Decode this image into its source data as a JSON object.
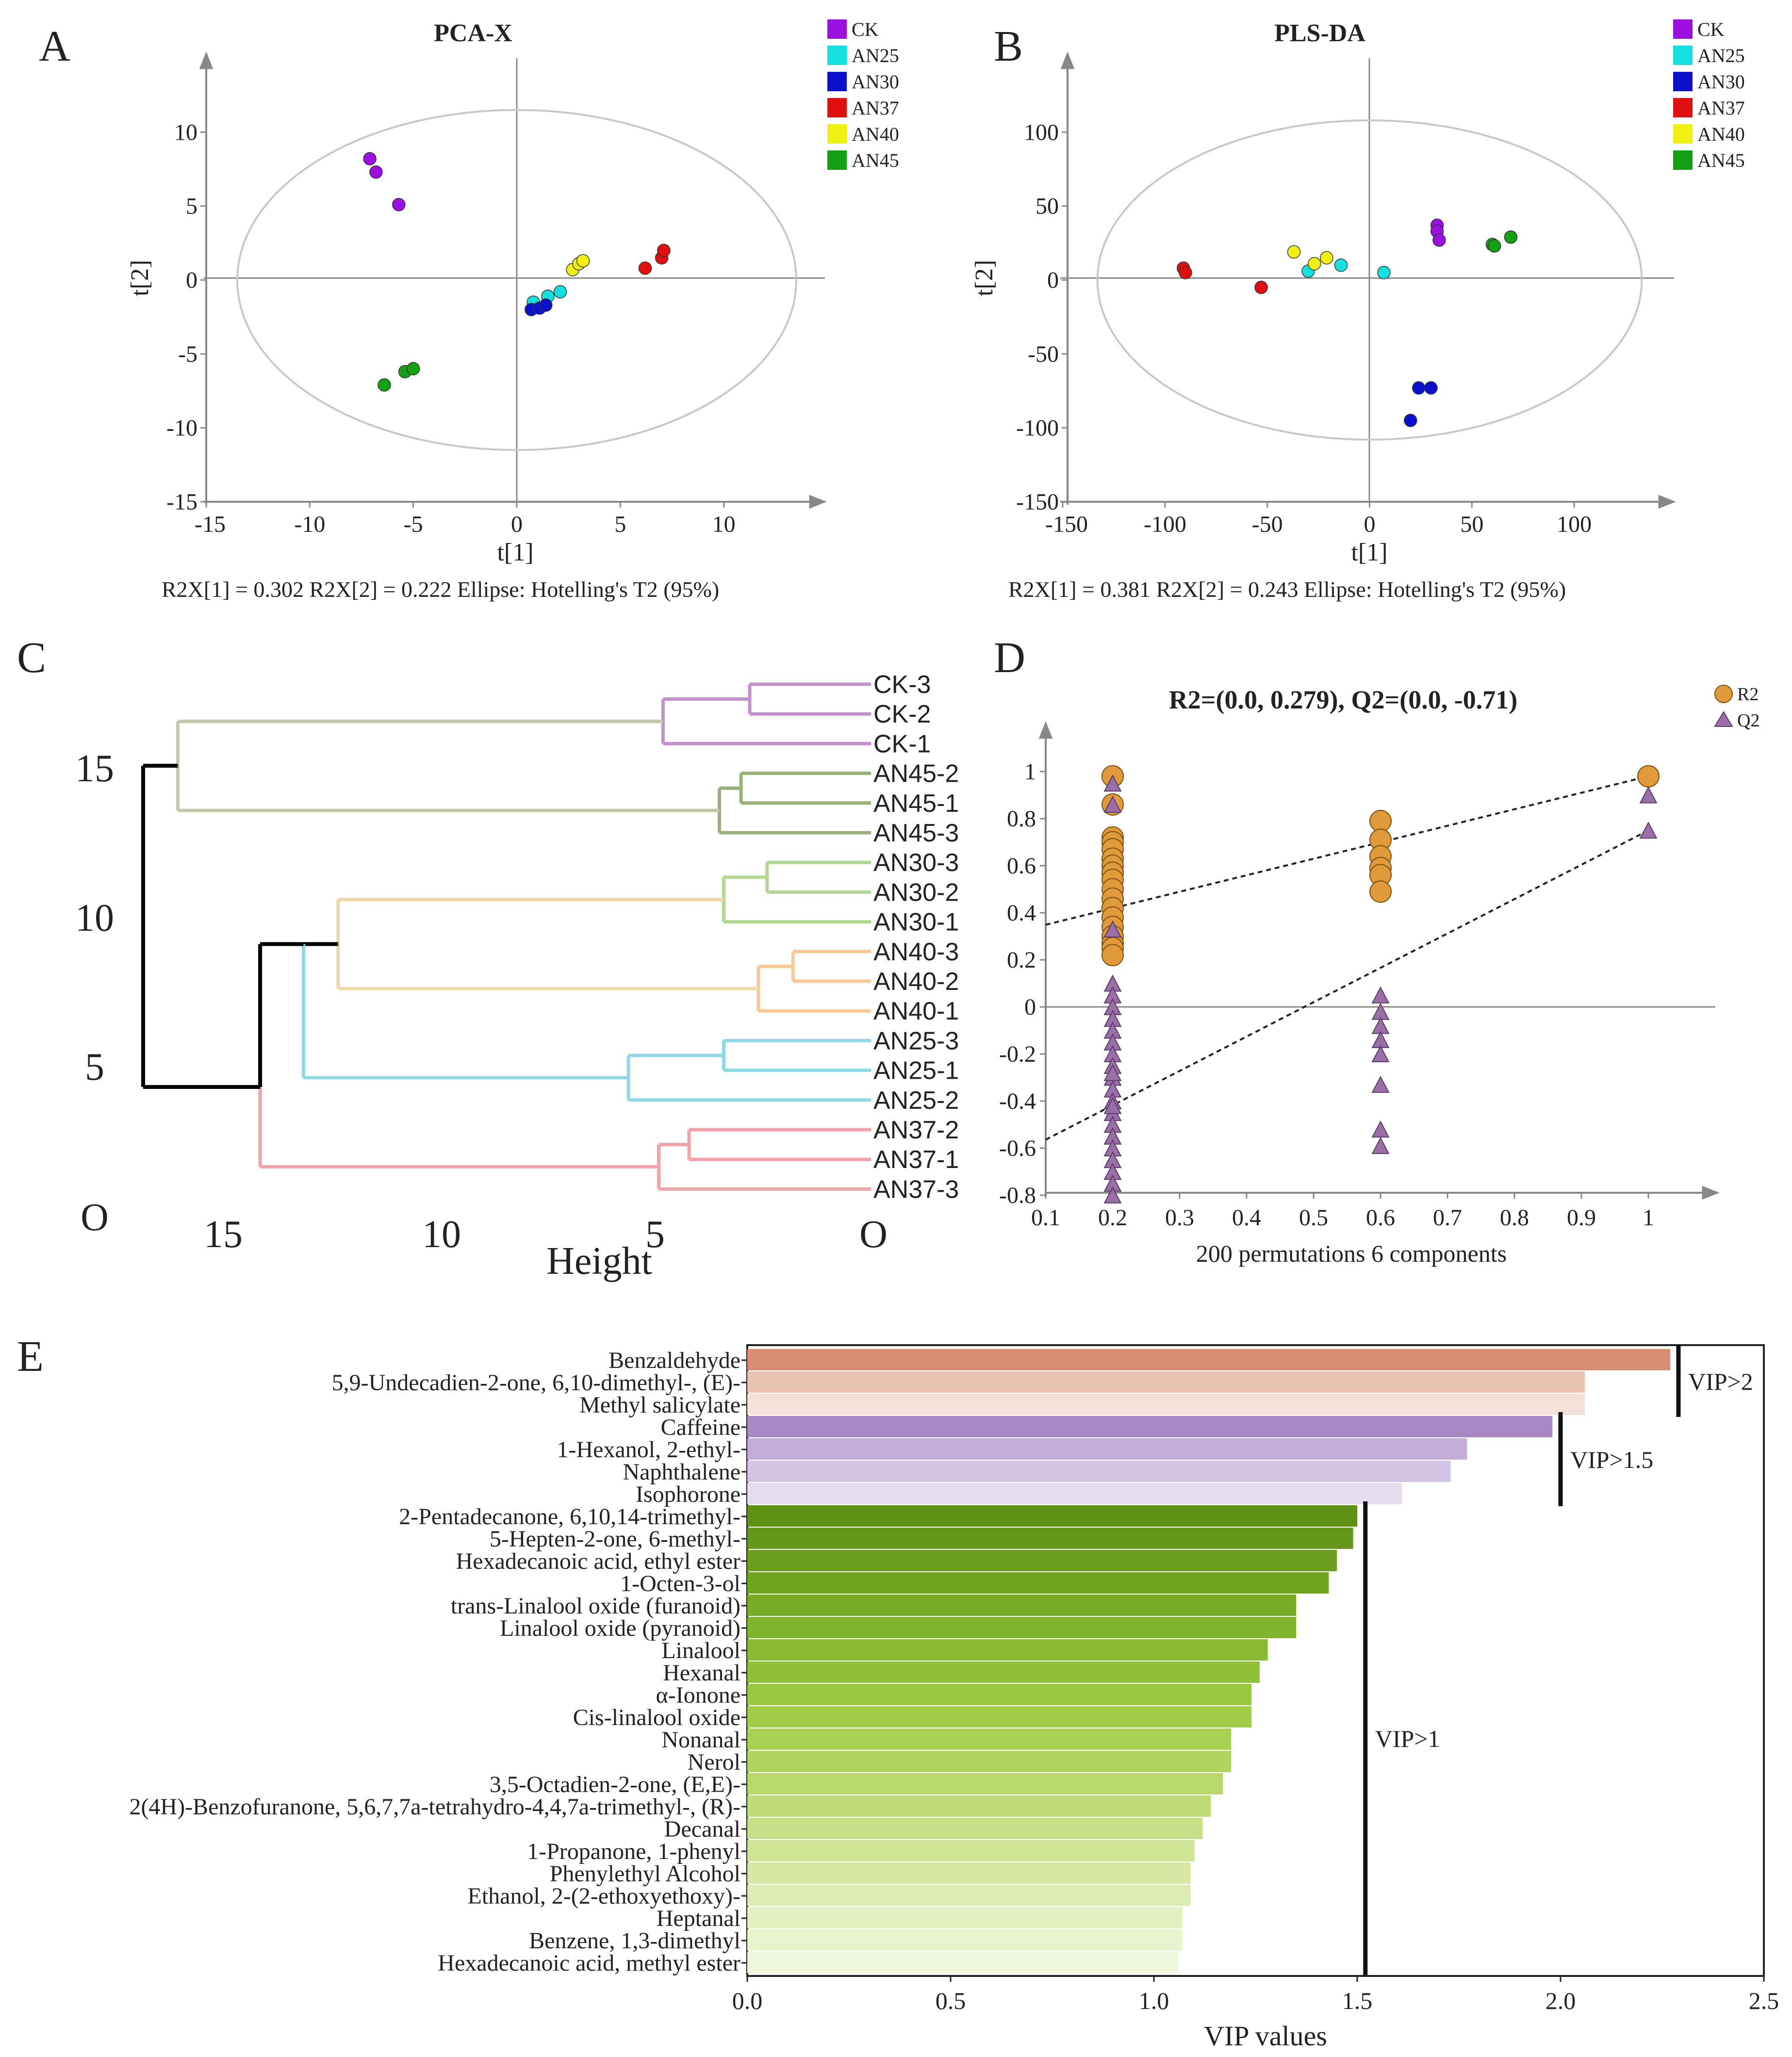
{
  "panels": {
    "A": {
      "letter": "A",
      "title": "PCA-X",
      "xlabel": "t[1]",
      "ylabel": "t[2]",
      "caption": "R2X[1] = 0.302  R2X[2] = 0.222  Ellipse: Hotelling's T2 (95%)",
      "x_ticks": [
        -15,
        -10,
        -5,
        0,
        5,
        10
      ],
      "y_ticks": [
        10,
        5,
        0,
        -5,
        -10,
        -15
      ],
      "xlim": [
        -15,
        15
      ],
      "ylim": [
        -15,
        15
      ],
      "ellipse": {
        "cx": 0,
        "cy": 0,
        "rx": 13.5,
        "ry": 11.5
      },
      "legend": [
        {
          "label": "CK",
          "color": "#9b10e0"
        },
        {
          "label": "AN25",
          "color": "#14e0e0"
        },
        {
          "label": "AN30",
          "color": "#0a10cc"
        },
        {
          "label": "AN37",
          "color": "#e01010"
        },
        {
          "label": "AN40",
          "color": "#f0f014"
        },
        {
          "label": "AN45",
          "color": "#14a014"
        }
      ]
    },
    "B": {
      "letter": "B",
      "title": "PLS-DA",
      "xlabel": "t[1]",
      "ylabel": "t[2]",
      "caption": "R2X[1] = 0.381  R2X[2] = 0.243  Ellipse: Hotelling's T2 (95%)",
      "x_ticks": [
        -150,
        -100,
        -50,
        0,
        50,
        100
      ],
      "y_ticks": [
        100,
        50,
        0,
        -50,
        -100,
        -150
      ],
      "xlim": [
        -150,
        150
      ],
      "ylim": [
        -150,
        150
      ],
      "ellipse": {
        "cx": 0,
        "cy": 0,
        "rx": 133,
        "ry": 108
      },
      "legend": [
        {
          "label": "CK",
          "color": "#9b10e0"
        },
        {
          "label": "AN25",
          "color": "#14e0e0"
        },
        {
          "label": "AN30",
          "color": "#0a10cc"
        },
        {
          "label": "AN37",
          "color": "#e01010"
        },
        {
          "label": "AN40",
          "color": "#f0f014"
        },
        {
          "label": "AN45",
          "color": "#14a014"
        }
      ]
    },
    "C": {
      "letter": "C",
      "xlabel": "Height",
      "x_ticks": [
        "15",
        "10",
        "5",
        "O"
      ],
      "y_ticks": [
        "15",
        "10",
        "5",
        "O"
      ]
    },
    "D": {
      "letter": "D",
      "title": "R2=(0.0, 0.279), Q2=(0.0, -0.71)",
      "xlabel": "200 permutations 6 components",
      "x_ticks": [
        "0.1",
        "0.2",
        "0.3",
        "0.4",
        "0.5",
        "0.6",
        "0.7",
        "0.8",
        "0.9",
        "1"
      ],
      "y_ticks": [
        "1",
        "0.8",
        "0.6",
        "0.4",
        "0.2",
        "0",
        "-0.2",
        "-0.4",
        "-0.6",
        "-0.8"
      ],
      "legend": [
        {
          "label": "R2",
          "color": "#e09a3a"
        },
        {
          "label": "Q2",
          "color": "#9a6fa8"
        }
      ]
    },
    "E": {
      "letter": "E",
      "xlabel": "VIP values",
      "x_ticks": [
        "0.0",
        "0.5",
        "1.0",
        "1.5",
        "2.0",
        "2.5"
      ],
      "thresholds": [
        "VIP>2",
        "VIP>1.5",
        "VIP>1"
      ]
    }
  },
  "chart_data": [
    {
      "type": "scatter",
      "panel": "A",
      "title": "PCA-X",
      "xlabel": "t[1]",
      "ylabel": "t[2]",
      "xlim": [
        -15,
        15
      ],
      "ylim": [
        -15,
        15
      ],
      "series": [
        {
          "name": "CK",
          "color": "#9b10e0",
          "points": [
            [
              -7.1,
              8.2
            ],
            [
              -6.8,
              7.3
            ],
            [
              -5.7,
              5.1
            ]
          ]
        },
        {
          "name": "AN25",
          "color": "#14e0e0",
          "points": [
            [
              0.8,
              -1.5
            ],
            [
              1.5,
              -1.1
            ],
            [
              2.1,
              -0.8
            ]
          ]
        },
        {
          "name": "AN30",
          "color": "#0a10cc",
          "points": [
            [
              0.7,
              -2.0
            ],
            [
              1.1,
              -1.9
            ],
            [
              1.4,
              -1.7
            ]
          ]
        },
        {
          "name": "AN37",
          "color": "#e01010",
          "points": [
            [
              6.2,
              0.8
            ],
            [
              7.0,
              1.5
            ],
            [
              7.1,
              2.0
            ]
          ]
        },
        {
          "name": "AN40",
          "color": "#f0f014",
          "points": [
            [
              2.7,
              0.7
            ],
            [
              3.0,
              1.1
            ],
            [
              3.2,
              1.3
            ]
          ]
        },
        {
          "name": "AN45",
          "color": "#14a014",
          "points": [
            [
              -6.4,
              -7.1
            ],
            [
              -5.4,
              -6.2
            ],
            [
              -5.0,
              -6.0
            ]
          ]
        }
      ]
    },
    {
      "type": "scatter",
      "panel": "B",
      "title": "PLS-DA",
      "xlabel": "t[1]",
      "ylabel": "t[2]",
      "xlim": [
        -150,
        150
      ],
      "ylim": [
        -150,
        150
      ],
      "series": [
        {
          "name": "CK",
          "color": "#9b10e0",
          "points": [
            [
              33,
              37
            ],
            [
              33,
              33
            ],
            [
              34,
              27
            ]
          ]
        },
        {
          "name": "AN25",
          "color": "#14e0e0",
          "points": [
            [
              -30,
              6
            ],
            [
              -14,
              10
            ],
            [
              7,
              5
            ]
          ]
        },
        {
          "name": "AN30",
          "color": "#0a10cc",
          "points": [
            [
              20,
              -95
            ],
            [
              24,
              -73
            ],
            [
              30,
              -73
            ]
          ]
        },
        {
          "name": "AN37",
          "color": "#e01010",
          "points": [
            [
              -91,
              8
            ],
            [
              -90,
              5
            ],
            [
              -53,
              -5
            ]
          ]
        },
        {
          "name": "AN40",
          "color": "#f0f014",
          "points": [
            [
              -37,
              19
            ],
            [
              -27,
              11
            ],
            [
              -21,
              15
            ]
          ]
        },
        {
          "name": "AN45",
          "color": "#14a014",
          "points": [
            [
              60,
              24
            ],
            [
              69,
              29
            ],
            [
              61,
              23
            ]
          ]
        }
      ]
    },
    {
      "type": "dendrogram",
      "panel": "C",
      "xlabel": "Height",
      "leaves": [
        "CK-3",
        "CK-2",
        "CK-1",
        "AN45-2",
        "AN45-1",
        "AN45-3",
        "AN30-3",
        "AN30-2",
        "AN30-1",
        "AN40-3",
        "AN40-2",
        "AN40-1",
        "AN25-3",
        "AN25-1",
        "AN25-2",
        "AN37-2",
        "AN37-1",
        "AN37-3"
      ],
      "merges": [
        {
          "a": "CK-3",
          "b": "CK-2",
          "height": 2.8,
          "color": "#c290cc"
        },
        {
          "a": "CK-3|CK-2",
          "b": "CK-1",
          "height": 4.8,
          "color": "#c290cc"
        },
        {
          "a": "AN45-2",
          "b": "AN45-1",
          "height": 3.0,
          "color": "#9ab07a"
        },
        {
          "a": "AN45-2|AN45-1",
          "b": "AN45-3",
          "height": 3.5,
          "color": "#9ab07a"
        },
        {
          "a": "AN30-3",
          "b": "AN30-2",
          "height": 2.4,
          "color": "#b2d890"
        },
        {
          "a": "AN30-3|AN30-2",
          "b": "AN30-1",
          "height": 3.4,
          "color": "#b2d890"
        },
        {
          "a": "AN40-3",
          "b": "AN40-2",
          "height": 1.8,
          "color": "#f8c898"
        },
        {
          "a": "AN40-3|AN40-2",
          "b": "AN40-1",
          "height": 2.6,
          "color": "#f8c898"
        },
        {
          "a": "AN25-3",
          "b": "AN25-1",
          "height": 3.4,
          "color": "#90d8e8"
        },
        {
          "a": "AN25-3|AN25-1",
          "b": "AN25-2",
          "height": 5.6,
          "color": "#90d8e8"
        },
        {
          "a": "AN37-2",
          "b": "AN37-1",
          "height": 4.2,
          "color": "#f2a2a8"
        },
        {
          "a": "AN37-2|AN37-1",
          "b": "AN37-3",
          "height": 4.9,
          "color": "#f2a2a8"
        },
        {
          "a": "CK",
          "b": "AN45",
          "height": 16.0,
          "color": "#c2c8a8"
        },
        {
          "a": "AN30",
          "b": "AN40",
          "height": 12.3,
          "color": "#f0d8a8"
        },
        {
          "a": "AN30+AN40",
          "b": "AN25",
          "height": 13.1,
          "color": "#90d8e8"
        },
        {
          "a": "AN30+AN40+AN25",
          "b": "AN37",
          "height": 14.1,
          "color": "#f2a2a8"
        },
        {
          "a": "CK+AN45",
          "b": "rest",
          "height": 16.8,
          "color": "#000000"
        }
      ]
    },
    {
      "type": "scatter",
      "panel": "D",
      "title": "R2=(0.0, 0.279), Q2=(0.0, -0.71)",
      "xlabel": "200 permutations 6 components",
      "xlim": [
        0.1,
        1.1
      ],
      "ylim": [
        -0.8,
        1.1
      ],
      "series": [
        {
          "name": "R2",
          "marker": "circle",
          "color": "#e09a3a",
          "x": [
            0.2,
            0.2,
            0.2,
            0.2,
            0.2,
            0.2,
            0.2,
            0.2,
            0.2,
            0.2,
            0.2,
            0.2,
            0.2,
            0.2,
            0.2,
            0.2,
            0.2,
            0.2,
            0.6,
            0.6,
            0.6,
            0.6,
            0.6,
            0.6,
            1.0
          ],
          "y": [
            0.98,
            0.86,
            0.72,
            0.7,
            0.67,
            0.63,
            0.6,
            0.57,
            0.54,
            0.5,
            0.46,
            0.42,
            0.38,
            0.34,
            0.3,
            0.27,
            0.25,
            0.22,
            0.79,
            0.71,
            0.64,
            0.59,
            0.56,
            0.49,
            0.98
          ]
        },
        {
          "name": "Q2",
          "marker": "triangle",
          "color": "#9a6fa8",
          "x": [
            0.2,
            0.2,
            0.2,
            0.2,
            0.2,
            0.2,
            0.2,
            0.2,
            0.2,
            0.2,
            0.2,
            0.2,
            0.2,
            0.2,
            0.2,
            0.2,
            0.2,
            0.2,
            0.2,
            0.2,
            0.2,
            0.2,
            0.2,
            0.2,
            0.6,
            0.6,
            0.6,
            0.6,
            0.6,
            0.6,
            0.6,
            0.6,
            1.0,
            1.0
          ],
          "y": [
            0.95,
            0.86,
            0.33,
            0.1,
            0.05,
            0.0,
            -0.05,
            -0.1,
            -0.15,
            -0.2,
            -0.25,
            -0.3,
            -0.35,
            -0.4,
            -0.45,
            -0.5,
            -0.55,
            -0.6,
            -0.65,
            -0.7,
            -0.75,
            -0.8,
            -0.42,
            -0.28,
            0.05,
            -0.02,
            -0.08,
            -0.14,
            -0.2,
            -0.33,
            -0.52,
            -0.59,
            0.9,
            0.75
          ]
        }
      ],
      "regression": [
        {
          "name": "R2",
          "x": [
            0.0,
            1.0
          ],
          "y": [
            0.279,
            0.98
          ]
        },
        {
          "name": "Q2",
          "x": [
            0.0,
            1.0
          ],
          "y": [
            -0.71,
            0.75
          ]
        }
      ]
    },
    {
      "type": "bar",
      "panel": "E",
      "orientation": "horizontal",
      "xlabel": "VIP values",
      "xlim": [
        0,
        2.5
      ],
      "categories": [
        "Benzaldehyde",
        "5,9-Undecadien-2-one, 6,10-dimethyl-, (E)-",
        "Methyl salicylate",
        "Caffeine",
        "1-Hexanol, 2-ethyl-",
        "Naphthalene",
        "Isophorone",
        "2-Pentadecanone, 6,10,14-trimethyl-",
        "5-Hepten-2-one, 6-methyl-",
        "Hexadecanoic acid, ethyl ester",
        "1-Octen-3-ol",
        "trans-Linalool oxide (furanoid)",
        "Linalool oxide (pyranoid)",
        "Linalool",
        "Hexanal",
        "α-Ionone",
        "Cis-linalool oxide",
        "Nonanal",
        "Nerol",
        "3,5-Octadien-2-one, (E,E)-",
        "2(4H)-Benzofuranone, 5,6,7,7a-tetrahydro-4,4,7a-trimethyl-, (R)-",
        "Decanal",
        "1-Propanone, 1-phenyl",
        "Phenylethyl Alcohol",
        "Ethanol, 2-(2-ethoxyethoxy)-",
        "Heptanal",
        "Benzene, 1,3-dimethyl",
        "Hexadecanoic acid, methyl ester"
      ],
      "values": [
        2.27,
        2.06,
        2.06,
        1.98,
        1.77,
        1.73,
        1.61,
        1.5,
        1.49,
        1.45,
        1.43,
        1.35,
        1.35,
        1.28,
        1.26,
        1.24,
        1.24,
        1.19,
        1.19,
        1.17,
        1.14,
        1.12,
        1.1,
        1.09,
        1.09,
        1.07,
        1.07,
        1.06
      ],
      "colors": [
        "#d98e72",
        "#eac3b2",
        "#f4e2da",
        "#a988c6",
        "#c4acd8",
        "#d4c4e4",
        "#e6dcf0",
        "#5e9014",
        "#649818",
        "#6a9e1c",
        "#70a420",
        "#78ac26",
        "#80b42c",
        "#88ba32",
        "#90c038",
        "#98c83e",
        "#a0cc48",
        "#a8d052",
        "#b0d45e",
        "#b8d86c",
        "#c0dc7a",
        "#c8e088",
        "#d0e496",
        "#d6e8a4",
        "#dcecb2",
        "#e2f0c0",
        "#e8f4ce",
        "#eef6dc"
      ],
      "thresholds": [
        {
          "label": "VIP>2",
          "value": 2.29
        },
        {
          "label": "VIP>1.5",
          "value": 2.0
        },
        {
          "label": "VIP>1",
          "value": 1.52
        }
      ]
    }
  ]
}
